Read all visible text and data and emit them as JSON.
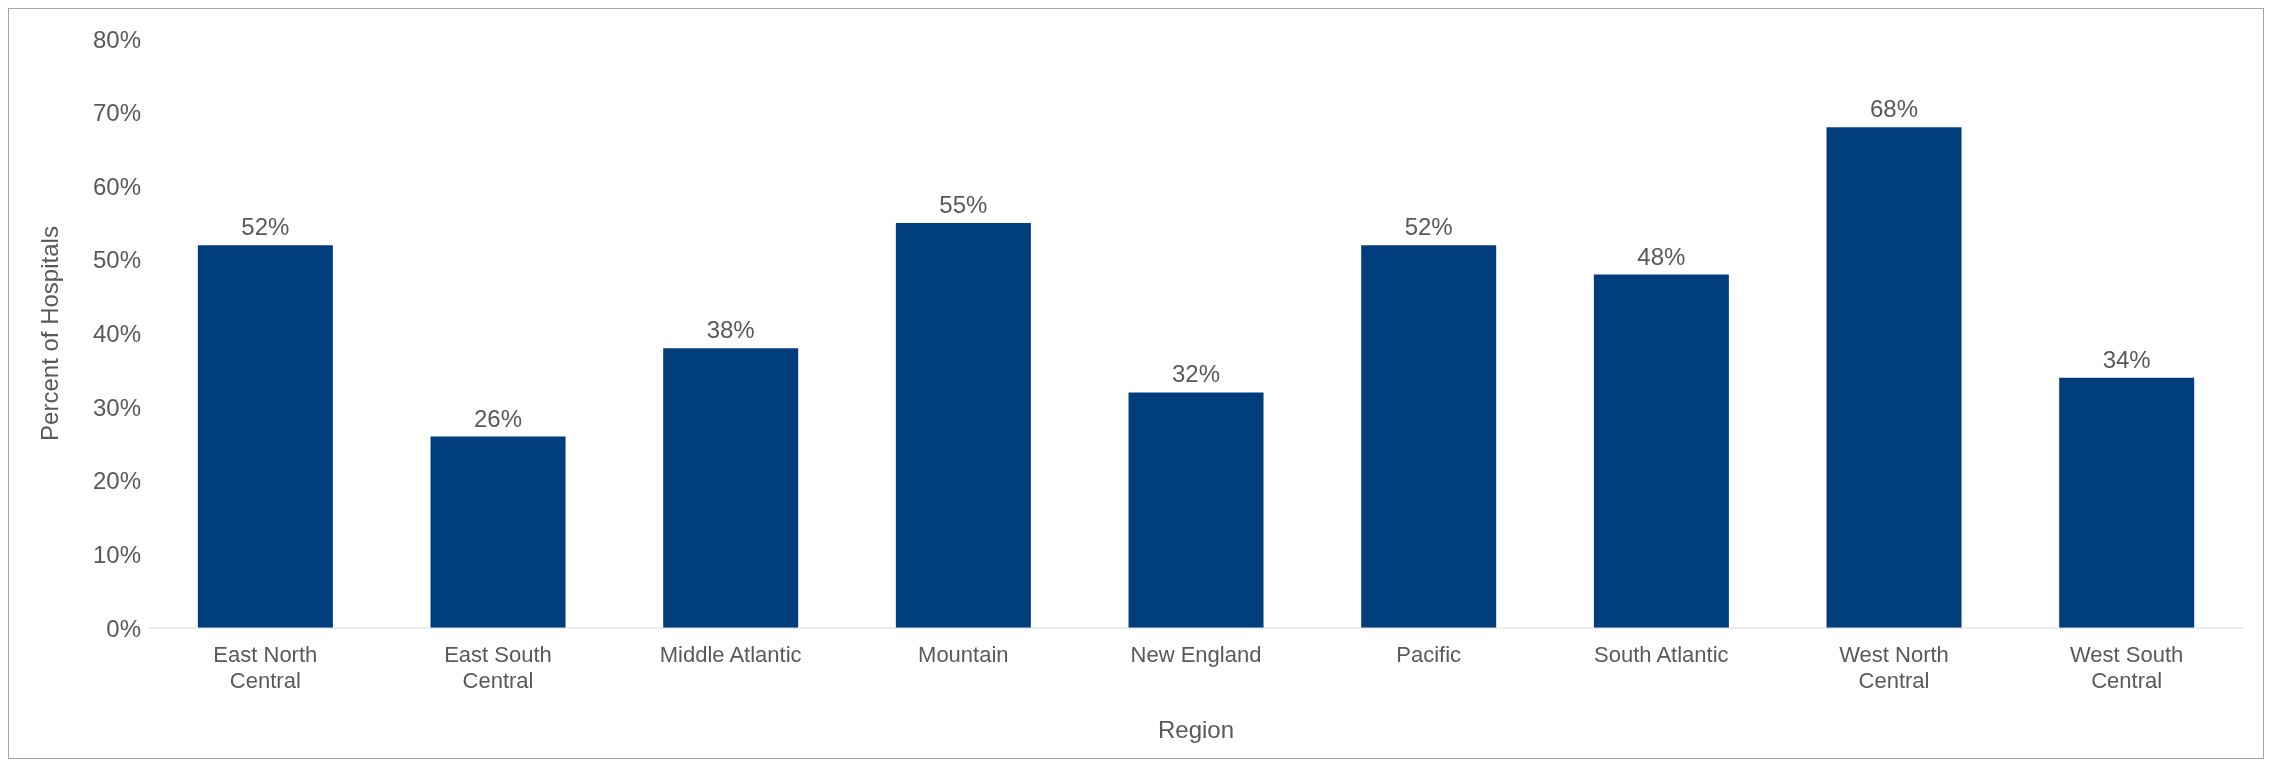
{
  "chart_data": {
    "type": "bar",
    "xlabel": "Region",
    "ylabel": "Percent of Hospitals",
    "categories": [
      "East North Central",
      "East South Central",
      "Middle Atlantic",
      "Mountain",
      "New England",
      "Pacific",
      "South Atlantic",
      "West North Central",
      "West South Central"
    ],
    "values": [
      52,
      26,
      38,
      55,
      32,
      52,
      48,
      68,
      34
    ],
    "value_labels": [
      "52%",
      "26%",
      "38%",
      "55%",
      "32%",
      "52%",
      "48%",
      "68%",
      "34%"
    ],
    "color": "#003d7c",
    "ylim": [
      0,
      80
    ],
    "yticks": [
      {
        "value": 0,
        "label": "0%"
      },
      {
        "value": 10,
        "label": "10%"
      },
      {
        "value": 20,
        "label": "20%"
      },
      {
        "value": 30,
        "label": "30%"
      },
      {
        "value": 40,
        "label": "40%"
      },
      {
        "value": 50,
        "label": "50%"
      },
      {
        "value": 60,
        "label": "60%"
      },
      {
        "value": 70,
        "label": "70%"
      },
      {
        "value": 80,
        "label": "80%"
      }
    ],
    "grid": false,
    "legend": false
  }
}
